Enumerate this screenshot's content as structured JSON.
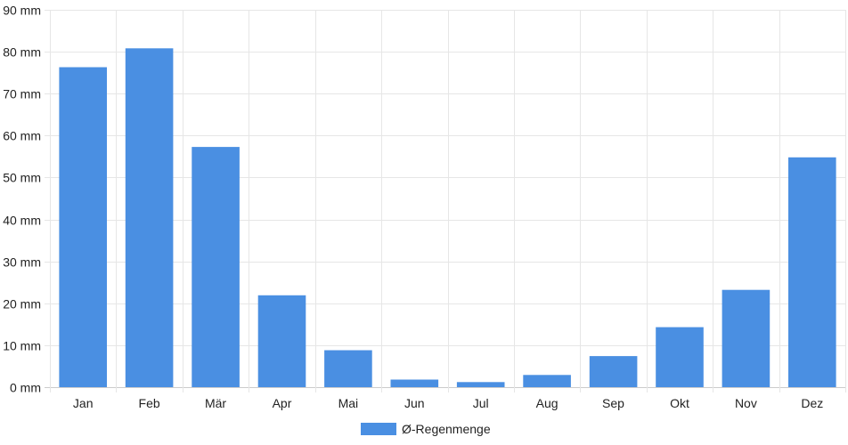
{
  "chart_data": {
    "type": "bar",
    "categories": [
      "Jan",
      "Feb",
      "Mär",
      "Apr",
      "Mai",
      "Jun",
      "Jul",
      "Aug",
      "Sep",
      "Okt",
      "Nov",
      "Dez"
    ],
    "series": [
      {
        "name": "Ø-Regenmenge",
        "color": "#4a8fe2",
        "values": [
          76.3,
          80.8,
          57.3,
          21.9,
          8.8,
          1.8,
          1.2,
          2.9,
          7.4,
          14.3,
          23.2,
          54.8
        ]
      }
    ],
    "y_unit_suffix": " mm",
    "ylim": [
      0,
      90
    ],
    "y_ticks": [
      0,
      10,
      20,
      30,
      40,
      50,
      60,
      70,
      80,
      90
    ],
    "grid": true,
    "legend_position": "bottom-center"
  }
}
